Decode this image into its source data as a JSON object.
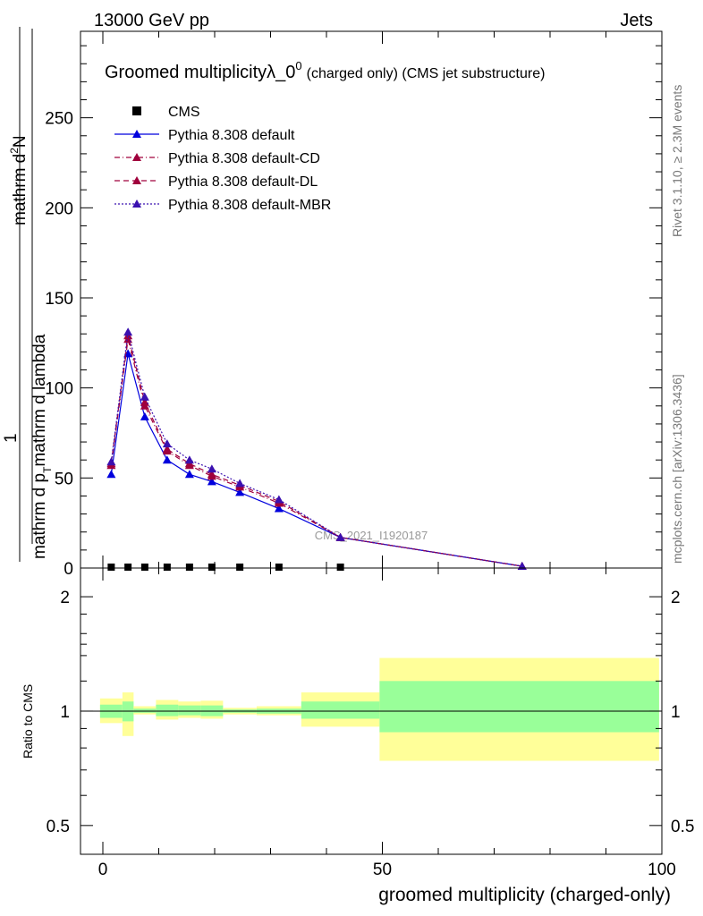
{
  "header": {
    "left": "13000 GeV pp",
    "right": "Jets"
  },
  "side_labels": {
    "rivet": "Rivet 3.1.10, ≥ 2.3M events",
    "mcplots": "mcplots.cern.ch [arXiv:1306.3436]"
  },
  "chart_data": [
    {
      "type": "line",
      "title": "Groomed multiplicityλ_0",
      "title_sup": "0",
      "title_suffix": "(charged only) (CMS jet substructure)",
      "ylabel_top": "1",
      "ylabel_bottom": "mathrm d N / mathrm d p",
      "ylabel_bottom_sub": "T",
      "ylabel_bottom_rest": "mathrm d lambda",
      "ylabel_numerator": "mathrm d",
      "ylabel_numerator_sup": "2",
      "ylabel_numerator_rest": "N",
      "ylabel_denominator": "mathrm d p",
      "ylabel_denominator_sub": "T",
      "ylabel_denominator_rest": "mathrm d lambda",
      "xlim": [
        -4,
        100
      ],
      "ylim": [
        0,
        298
      ],
      "yticks": [
        0,
        50,
        100,
        150,
        200,
        250
      ],
      "ytick_labels": [
        "0",
        "50",
        "100",
        "150",
        "200",
        "250"
      ],
      "watermark": "CMS_2021_I1920187",
      "series": [
        {
          "name": "CMS",
          "style": "marker",
          "color": "#000000",
          "x": [
            1.5,
            4.5,
            7.5,
            11.5,
            15.5,
            19.5,
            24.5,
            31.5,
            42.5
          ],
          "y": [
            0.5,
            0.5,
            0.5,
            0.5,
            0.5,
            0.5,
            0.5,
            0.5,
            0.5
          ]
        },
        {
          "name": "Pythia 8.308 default",
          "style": "solid",
          "color": "#0000dd",
          "x": [
            1.5,
            4.5,
            7.5,
            11.5,
            15.5,
            19.5,
            24.5,
            31.5,
            42.5,
            75
          ],
          "y": [
            52,
            119,
            84,
            60,
            52,
            48,
            42,
            33,
            17,
            1
          ]
        },
        {
          "name": "Pythia 8.308 default-CD",
          "style": "dashdot",
          "color": "#a0003c",
          "x": [
            1.5,
            4.5,
            7.5,
            11.5,
            15.5,
            19.5,
            24.5,
            31.5,
            42.5,
            75
          ],
          "y": [
            57,
            127,
            90,
            65,
            57,
            51,
            45,
            36,
            17,
            1
          ]
        },
        {
          "name": "Pythia 8.308 default-DL",
          "style": "dashed",
          "color": "#a0003c",
          "x": [
            1.5,
            4.5,
            7.5,
            11.5,
            15.5,
            19.5,
            24.5,
            31.5,
            42.5,
            75
          ],
          "y": [
            58,
            129,
            92,
            66,
            58,
            52,
            46,
            37,
            17,
            1
          ]
        },
        {
          "name": "Pythia 8.308 default-MBR",
          "style": "dotted",
          "color": "#3a10b0",
          "x": [
            1.5,
            4.5,
            7.5,
            11.5,
            15.5,
            19.5,
            24.5,
            31.5,
            42.5,
            75
          ],
          "y": [
            59,
            131,
            95,
            69,
            60,
            55,
            47,
            38,
            17,
            1
          ]
        }
      ]
    },
    {
      "type": "area",
      "ylabel": "Ratio to CMS",
      "xlabel": "groomed multiplicity (charged-only)",
      "xlim": [
        -4,
        100
      ],
      "ylim": [
        0.42,
        2.38
      ],
      "yscale": "log",
      "yticks": [
        0.5,
        1,
        2
      ],
      "ytick_labels": [
        "0.5",
        "1",
        "2"
      ],
      "xticks": [
        0,
        50,
        100
      ],
      "xtick_labels": [
        "0",
        "50",
        "100"
      ],
      "bands": [
        {
          "x0": -0.5,
          "x1": 3.5,
          "yellow": [
            0.93,
            1.08
          ],
          "green": [
            0.96,
            1.04
          ]
        },
        {
          "x0": 3.5,
          "x1": 5.5,
          "yellow": [
            0.86,
            1.12
          ],
          "green": [
            0.94,
            1.06
          ]
        },
        {
          "x0": 5.5,
          "x1": 9.5,
          "yellow": [
            0.98,
            1.03
          ],
          "green": [
            0.99,
            1.015
          ]
        },
        {
          "x0": 9.5,
          "x1": 13.5,
          "yellow": [
            0.95,
            1.07
          ],
          "green": [
            0.97,
            1.04
          ]
        },
        {
          "x0": 13.5,
          "x1": 17.5,
          "yellow": [
            0.96,
            1.06
          ],
          "green": [
            0.975,
            1.035
          ]
        },
        {
          "x0": 17.5,
          "x1": 21.5,
          "yellow": [
            0.955,
            1.065
          ],
          "green": [
            0.97,
            1.035
          ]
        },
        {
          "x0": 21.5,
          "x1": 27.5,
          "yellow": [
            0.98,
            1.02
          ],
          "green": [
            0.99,
            1.01
          ]
        },
        {
          "x0": 27.5,
          "x1": 35.5,
          "yellow": [
            0.975,
            1.03
          ],
          "green": [
            0.985,
            1.015
          ]
        },
        {
          "x0": 35.5,
          "x1": 49.5,
          "yellow": [
            0.91,
            1.12
          ],
          "green": [
            0.955,
            1.06
          ]
        },
        {
          "x0": 49.5,
          "x1": 99.5,
          "yellow": [
            0.74,
            1.38
          ],
          "green": [
            0.88,
            1.2
          ]
        }
      ],
      "band_colors": {
        "yellow": "#ffff99",
        "green": "#99ff99"
      }
    }
  ]
}
